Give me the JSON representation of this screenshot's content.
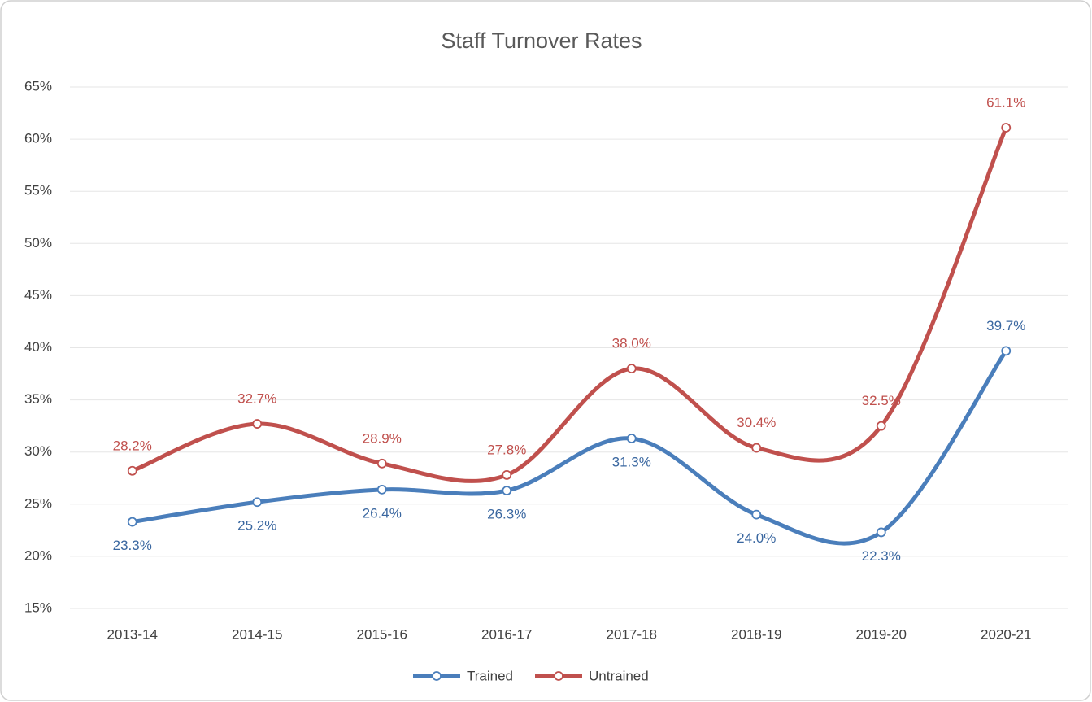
{
  "chart_data": {
    "type": "line",
    "title": "Staff Turnover Rates",
    "categories": [
      "2013-14",
      "2014-15",
      "2015-16",
      "2016-17",
      "2017-18",
      "2018-19",
      "2019-20",
      "2020-21"
    ],
    "series": [
      {
        "name": "Trained",
        "color": "#4a7ebb",
        "values": [
          23.3,
          25.2,
          26.4,
          26.3,
          31.3,
          24.0,
          22.3,
          39.7
        ],
        "value_labels": [
          "23.3%",
          "25.2%",
          "26.4%",
          "26.3%",
          "31.3%",
          "24.0%",
          "22.3%",
          "39.7%"
        ]
      },
      {
        "name": "Untrained",
        "color": "#c0504d",
        "values": [
          28.2,
          32.7,
          28.9,
          27.8,
          38.0,
          30.4,
          32.5,
          61.1
        ],
        "value_labels": [
          "28.2%",
          "32.7%",
          "28.9%",
          "27.8%",
          "38.0%",
          "30.4%",
          "32.5%",
          "61.1%"
        ]
      }
    ],
    "ylim": [
      15,
      65
    ],
    "yticks": [
      {
        "value": 15,
        "label": "15%"
      },
      {
        "value": 20,
        "label": "20%"
      },
      {
        "value": 25,
        "label": "25%"
      },
      {
        "value": 30,
        "label": "30%"
      },
      {
        "value": 35,
        "label": "35%"
      },
      {
        "value": 40,
        "label": "40%"
      },
      {
        "value": 45,
        "label": "45%"
      },
      {
        "value": 50,
        "label": "50%"
      },
      {
        "value": 55,
        "label": "55%"
      },
      {
        "value": 60,
        "label": "60%"
      },
      {
        "value": 65,
        "label": "65%"
      }
    ],
    "grid": true,
    "legend": "bottom",
    "smooth": true
  }
}
